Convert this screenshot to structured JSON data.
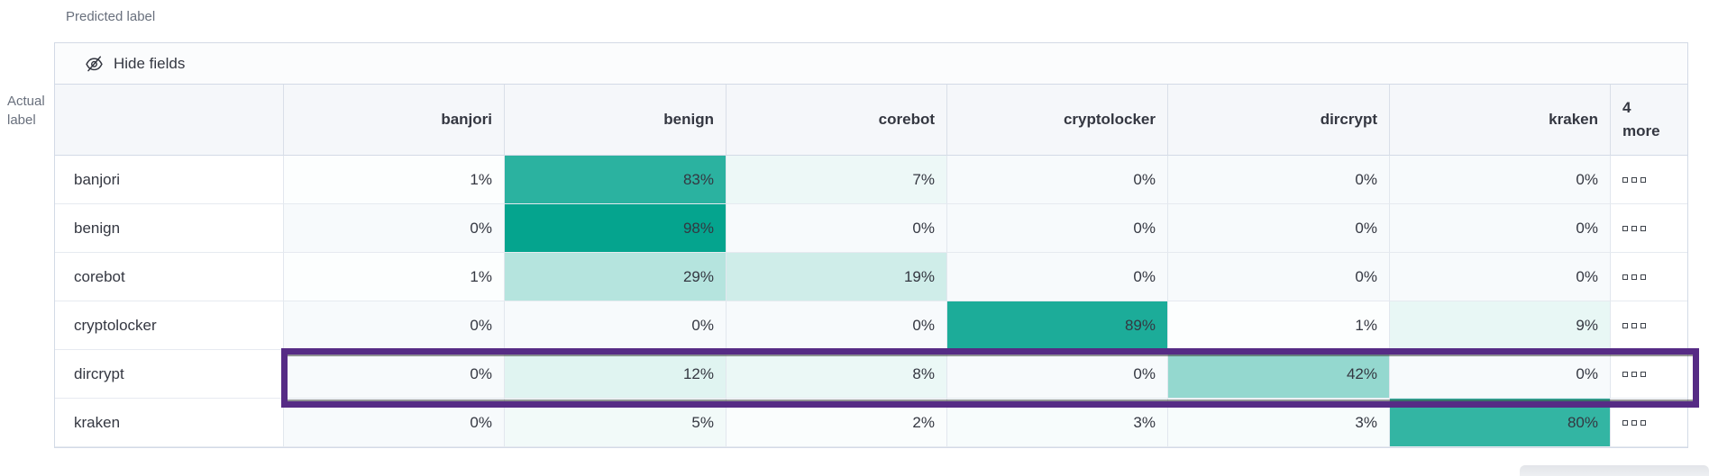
{
  "axes": {
    "predicted": "Predicted label",
    "actual_line1": "Actual",
    "actual_line2": "label"
  },
  "toolbar": {
    "hide_fields_label": "Hide fields",
    "icon": "eye-closed-icon"
  },
  "chart_data": {
    "type": "heatmap",
    "columns": [
      "banjori",
      "benign",
      "corebot",
      "cryptolocker",
      "dircrypt",
      "kraken"
    ],
    "hidden_columns_header": "4 more",
    "hidden_columns_marker": "three-small-squares-icon",
    "rows": [
      "banjori",
      "benign",
      "corebot",
      "cryptolocker",
      "dircrypt",
      "kraken"
    ],
    "values": [
      [
        1,
        83,
        7,
        0,
        0,
        0
      ],
      [
        0,
        98,
        0,
        0,
        0,
        0
      ],
      [
        1,
        29,
        19,
        0,
        0,
        0
      ],
      [
        0,
        0,
        0,
        89,
        1,
        9
      ],
      [
        0,
        12,
        8,
        0,
        42,
        0
      ],
      [
        0,
        5,
        2,
        3,
        3,
        80
      ]
    ],
    "value_suffix": "%",
    "highlighted_row": "dircrypt",
    "legend_position": "none",
    "grid": true
  },
  "colors": {
    "cell_base": "#00A28C",
    "cell_zero": "#F7FAFC",
    "highlight_border": "#562B85",
    "header_bg": "#F5F7FA",
    "table_border": "#D3DAE6",
    "text": "#343741",
    "axis_text": "#69707D"
  }
}
